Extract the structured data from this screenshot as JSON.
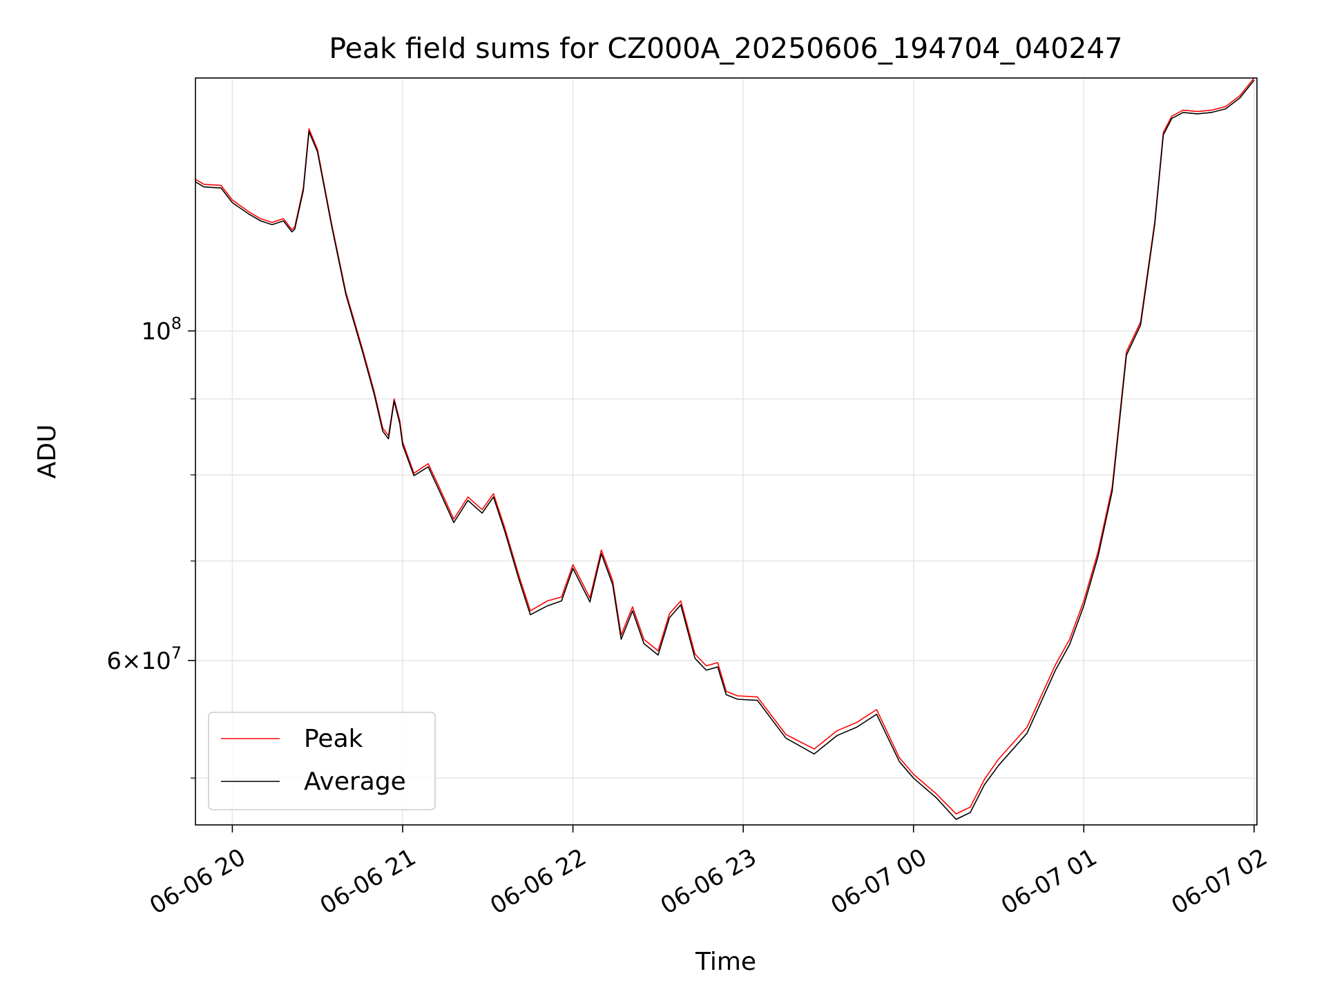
{
  "chart_data": {
    "type": "line",
    "title": "Peak field sums for CZ000A_20250606_194704_040247",
    "xlabel": "Time",
    "ylabel": "ADU",
    "yscale": "log",
    "grid": true,
    "legend_position": "lower-left",
    "xlim": [
      "2025-06-06 19:47:00",
      "2025-06-07 02:01:00"
    ],
    "ylim": [
      46500000,
      148000000
    ],
    "x_ticks": [
      {
        "t": "2025-06-06 20:00",
        "label": "06-06 20"
      },
      {
        "t": "2025-06-06 21:00",
        "label": "06-06 21"
      },
      {
        "t": "2025-06-06 22:00",
        "label": "06-06 22"
      },
      {
        "t": "2025-06-06 23:00",
        "label": "06-06 23"
      },
      {
        "t": "2025-06-07 00:00",
        "label": "06-07 00"
      },
      {
        "t": "2025-06-07 01:00",
        "label": "06-07 01"
      },
      {
        "t": "2025-06-07 02:00",
        "label": "06-07 02"
      }
    ],
    "y_major_ticks": [
      {
        "value": 100000000,
        "base": "10",
        "exp": "8"
      },
      {
        "value": 60000000,
        "mant": "6",
        "base": "10",
        "exp": "7"
      }
    ],
    "y_minor_ticks": [
      50000000,
      70000000,
      80000000,
      90000000
    ],
    "series": [
      {
        "name": "Peak",
        "color": "#ff0000",
        "x": [
          "2025-06-06 19:47",
          "2025-06-06 19:50",
          "2025-06-06 19:56",
          "2025-06-06 20:00",
          "2025-06-06 20:06",
          "2025-06-06 20:10",
          "2025-06-06 20:14",
          "2025-06-06 20:18",
          "2025-06-06 20:21",
          "2025-06-06 20:22",
          "2025-06-06 20:25",
          "2025-06-06 20:27",
          "2025-06-06 20:30",
          "2025-06-06 20:35",
          "2025-06-06 20:40",
          "2025-06-06 20:46",
          "2025-06-06 20:50",
          "2025-06-06 20:53",
          "2025-06-06 20:55",
          "2025-06-06 20:57",
          "2025-06-06 20:59",
          "2025-06-06 21:00",
          "2025-06-06 21:04",
          "2025-06-06 21:09",
          "2025-06-06 21:13",
          "2025-06-06 21:18",
          "2025-06-06 21:23",
          "2025-06-06 21:28",
          "2025-06-06 21:32",
          "2025-06-06 21:36",
          "2025-06-06 21:41",
          "2025-06-06 21:45",
          "2025-06-06 21:51",
          "2025-06-06 21:56",
          "2025-06-06 22:00",
          "2025-06-06 22:06",
          "2025-06-06 22:10",
          "2025-06-06 22:14",
          "2025-06-06 22:17",
          "2025-06-06 22:21",
          "2025-06-06 22:25",
          "2025-06-06 22:30",
          "2025-06-06 22:34",
          "2025-06-06 22:38",
          "2025-06-06 22:43",
          "2025-06-06 22:47",
          "2025-06-06 22:51",
          "2025-06-06 22:54",
          "2025-06-06 22:58",
          "2025-06-06 23:05",
          "2025-06-06 23:15",
          "2025-06-06 23:25",
          "2025-06-06 23:33",
          "2025-06-06 23:40",
          "2025-06-06 23:47",
          "2025-06-06 23:55",
          "2025-06-07 00:00",
          "2025-06-07 00:08",
          "2025-06-07 00:15",
          "2025-06-07 00:20",
          "2025-06-07 00:25",
          "2025-06-07 00:30",
          "2025-06-07 00:40",
          "2025-06-07 00:50",
          "2025-06-07 00:55",
          "2025-06-07 01:00",
          "2025-06-07 01:05",
          "2025-06-07 01:10",
          "2025-06-07 01:15",
          "2025-06-07 01:20",
          "2025-06-07 01:25",
          "2025-06-07 01:28",
          "2025-06-07 01:31",
          "2025-06-07 01:35",
          "2025-06-07 01:40",
          "2025-06-07 01:45",
          "2025-06-07 01:50",
          "2025-06-07 01:55",
          "2025-06-07 02:00"
        ],
        "y": [
          126500000,
          125500000,
          125300000,
          122500000,
          120200000,
          119000000,
          118300000,
          119000000,
          117000000,
          117500000,
          124800000,
          136800000,
          132500000,
          118000000,
          106200000,
          97000000,
          91000000,
          86000000,
          85000000,
          90000000,
          87000000,
          84200000,
          80200000,
          81400000,
          78400000,
          74700000,
          77300000,
          75800000,
          77700000,
          73700000,
          68400000,
          64800000,
          65800000,
          66200000,
          69600000,
          66100000,
          71200000,
          67900000,
          62400000,
          65200000,
          62000000,
          60900000,
          64500000,
          65800000,
          60600000,
          59500000,
          59800000,
          57200000,
          56800000,
          56700000,
          53500000,
          52300000,
          53800000,
          54500000,
          55600000,
          51600000,
          50300000,
          48800000,
          47300000,
          47800000,
          49900000,
          51500000,
          54100000,
          59600000,
          62000000,
          65800000,
          71000000,
          78500000,
          96800000,
          101400000,
          118500000,
          136000000,
          139500000,
          140800000,
          140500000,
          140800000,
          141600000,
          144000000,
          148000000
        ]
      },
      {
        "name": "Average",
        "color": "#000000",
        "x": [
          "2025-06-06 19:47",
          "2025-06-06 19:50",
          "2025-06-06 19:56",
          "2025-06-06 20:00",
          "2025-06-06 20:06",
          "2025-06-06 20:10",
          "2025-06-06 20:14",
          "2025-06-06 20:18",
          "2025-06-06 20:21",
          "2025-06-06 20:22",
          "2025-06-06 20:25",
          "2025-06-06 20:27",
          "2025-06-06 20:30",
          "2025-06-06 20:35",
          "2025-06-06 20:40",
          "2025-06-06 20:46",
          "2025-06-06 20:50",
          "2025-06-06 20:53",
          "2025-06-06 20:55",
          "2025-06-06 20:57",
          "2025-06-06 20:59",
          "2025-06-06 21:00",
          "2025-06-06 21:04",
          "2025-06-06 21:09",
          "2025-06-06 21:13",
          "2025-06-06 21:18",
          "2025-06-06 21:23",
          "2025-06-06 21:28",
          "2025-06-06 21:32",
          "2025-06-06 21:36",
          "2025-06-06 21:41",
          "2025-06-06 21:45",
          "2025-06-06 21:51",
          "2025-06-06 21:56",
          "2025-06-06 22:00",
          "2025-06-06 22:06",
          "2025-06-06 22:10",
          "2025-06-06 22:14",
          "2025-06-06 22:17",
          "2025-06-06 22:21",
          "2025-06-06 22:25",
          "2025-06-06 22:30",
          "2025-06-06 22:34",
          "2025-06-06 22:38",
          "2025-06-06 22:43",
          "2025-06-06 22:47",
          "2025-06-06 22:51",
          "2025-06-06 22:54",
          "2025-06-06 22:58",
          "2025-06-06 23:05",
          "2025-06-06 23:15",
          "2025-06-06 23:25",
          "2025-06-06 23:33",
          "2025-06-06 23:40",
          "2025-06-06 23:47",
          "2025-06-06 23:55",
          "2025-06-07 00:00",
          "2025-06-07 00:08",
          "2025-06-07 00:15",
          "2025-06-07 00:20",
          "2025-06-07 00:25",
          "2025-06-07 00:30",
          "2025-06-07 00:40",
          "2025-06-07 00:50",
          "2025-06-07 00:55",
          "2025-06-07 01:00",
          "2025-06-07 01:05",
          "2025-06-07 01:10",
          "2025-06-07 01:15",
          "2025-06-07 01:20",
          "2025-06-07 01:25",
          "2025-06-07 01:28",
          "2025-06-07 01:31",
          "2025-06-07 01:35",
          "2025-06-07 01:40",
          "2025-06-07 01:45",
          "2025-06-07 01:50",
          "2025-06-07 01:55",
          "2025-06-07 02:00"
        ],
        "y": [
          126000000,
          125000000,
          124800000,
          122000000,
          119800000,
          118600000,
          117900000,
          118600000,
          116600000,
          117100000,
          124300000,
          136200000,
          132000000,
          117600000,
          105800000,
          96600000,
          90600000,
          85600000,
          84600000,
          89700000,
          86600000,
          83800000,
          79900000,
          81000000,
          78000000,
          74300000,
          76900000,
          75400000,
          77300000,
          73300000,
          68000000,
          64400000,
          65300000,
          65800000,
          69200000,
          65700000,
          70800000,
          67500000,
          62000000,
          64800000,
          61600000,
          60500000,
          64100000,
          65400000,
          60200000,
          59100000,
          59400000,
          56900000,
          56500000,
          56400000,
          53200000,
          51900000,
          53400000,
          54100000,
          55200000,
          51300000,
          50000000,
          48500000,
          46900000,
          47400000,
          49500000,
          51000000,
          53600000,
          59100000,
          61500000,
          65300000,
          70500000,
          78000000,
          96300000,
          100900000,
          118000000,
          135500000,
          139000000,
          140300000,
          140000000,
          140300000,
          141100000,
          143500000,
          147500000
        ]
      }
    ]
  }
}
